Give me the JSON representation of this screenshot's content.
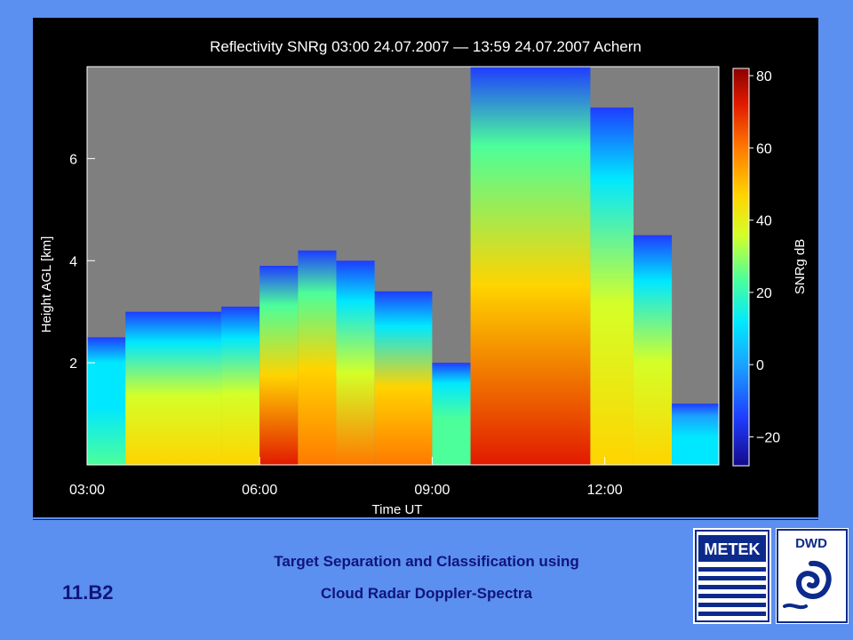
{
  "chart_data": {
    "type": "heatmap",
    "title": "Reflectivity SNRg    03:00 24.07.2007 — 13:59 24.07.2007 Achern",
    "xlabel": "Time UT",
    "ylabel": "Height AGL [km]",
    "x_ticks": [
      "03:00",
      "06:00",
      "09:00",
      "12:00"
    ],
    "y_ticks": [
      "2",
      "4",
      "6"
    ],
    "xlim": [
      "03:00",
      "13:59"
    ],
    "ylim": [
      0,
      7.8
    ],
    "colorbar": {
      "label": "SNRg dB",
      "ticks": [
        "80",
        "60",
        "40",
        "20",
        "0",
        "−20"
      ],
      "range": [
        -28,
        82
      ],
      "colors": [
        "#140a8a",
        "#1f3cff",
        "#1aa0ff",
        "#00e8ff",
        "#4cff9a",
        "#d4ff28",
        "#ffd400",
        "#ff7a00",
        "#e21a00",
        "#8a0000"
      ]
    },
    "background_color": "#7f7f7f",
    "columns": [
      {
        "start": "03:00",
        "end": "03:40",
        "top_km": 2.5,
        "peak_db": 18
      },
      {
        "start": "03:40",
        "end": "05:20",
        "top_km": 3.0,
        "peak_db": 48
      },
      {
        "start": "05:20",
        "end": "06:00",
        "top_km": 3.1,
        "peak_db": 42
      },
      {
        "start": "06:00",
        "end": "06:40",
        "top_km": 3.9,
        "peak_db": 60
      },
      {
        "start": "06:40",
        "end": "07:20",
        "top_km": 4.2,
        "peak_db": 55
      },
      {
        "start": "07:20",
        "end": "08:00",
        "top_km": 4.0,
        "peak_db": 50
      },
      {
        "start": "08:00",
        "end": "09:00",
        "top_km": 3.4,
        "peak_db": 52
      },
      {
        "start": "09:00",
        "end": "09:40",
        "top_km": 2.0,
        "peak_db": 22
      },
      {
        "start": "09:40",
        "end": "11:45",
        "top_km": 7.8,
        "peak_db": 62
      },
      {
        "start": "11:45",
        "end": "12:30",
        "top_km": 7.0,
        "peak_db": 40
      },
      {
        "start": "12:30",
        "end": "13:10",
        "top_km": 4.5,
        "peak_db": 45
      },
      {
        "start": "13:10",
        "end": "13:59",
        "top_km": 1.2,
        "peak_db": 10
      }
    ]
  },
  "footer": {
    "line1": "Target Separation and Classification using",
    "line2": "Cloud Radar Doppler-Spectra",
    "code": "11.B2"
  },
  "logos": {
    "metek": "METEK",
    "dwd": "DWD"
  }
}
